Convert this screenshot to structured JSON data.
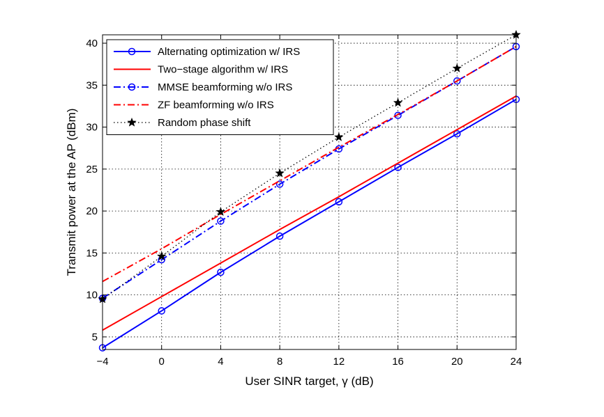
{
  "chart_data": {
    "type": "line",
    "xlabel": "User SINR target, γ (dB)",
    "ylabel": "Transmit power at the AP (dBm)",
    "xlim": [
      -4,
      24
    ],
    "ylim": [
      3.5,
      41
    ],
    "xticks": [
      -4,
      0,
      4,
      8,
      12,
      16,
      20,
      24
    ],
    "yticks": [
      5,
      10,
      15,
      20,
      25,
      30,
      35,
      40
    ],
    "grid": true,
    "legend_position": "top-left",
    "x": [
      -4,
      0,
      4,
      8,
      12,
      16,
      20,
      24
    ],
    "series": [
      {
        "name": "Alternating optimization w/ IRS",
        "values": [
          3.7,
          8.1,
          12.7,
          17.0,
          21.1,
          25.2,
          29.2,
          33.3
        ],
        "color": "#0000ff",
        "line": "solid",
        "marker": "circle"
      },
      {
        "name": "Two−stage algorithm w/ IRS",
        "values": [
          5.8,
          9.8,
          13.8,
          17.8,
          21.7,
          25.7,
          29.7,
          33.7
        ],
        "color": "#ff0000",
        "line": "solid",
        "marker": "none"
      },
      {
        "name": "MMSE beamforming w/o IRS",
        "values": [
          9.6,
          14.2,
          18.8,
          23.2,
          27.4,
          31.4,
          35.5,
          39.6
        ],
        "color": "#0000ff",
        "line": "dashdot",
        "marker": "circle"
      },
      {
        "name": "ZF beamforming w/o IRS",
        "values": [
          11.6,
          15.5,
          19.6,
          23.6,
          27.6,
          31.5,
          35.5,
          39.6
        ],
        "color": "#ff0000",
        "line": "dashdot",
        "marker": "none"
      },
      {
        "name": "Random phase shift",
        "values": [
          9.5,
          14.6,
          19.9,
          24.5,
          28.8,
          32.9,
          37.0,
          41.0
        ],
        "color": "#000000",
        "line": "dotted",
        "marker": "star"
      }
    ]
  }
}
